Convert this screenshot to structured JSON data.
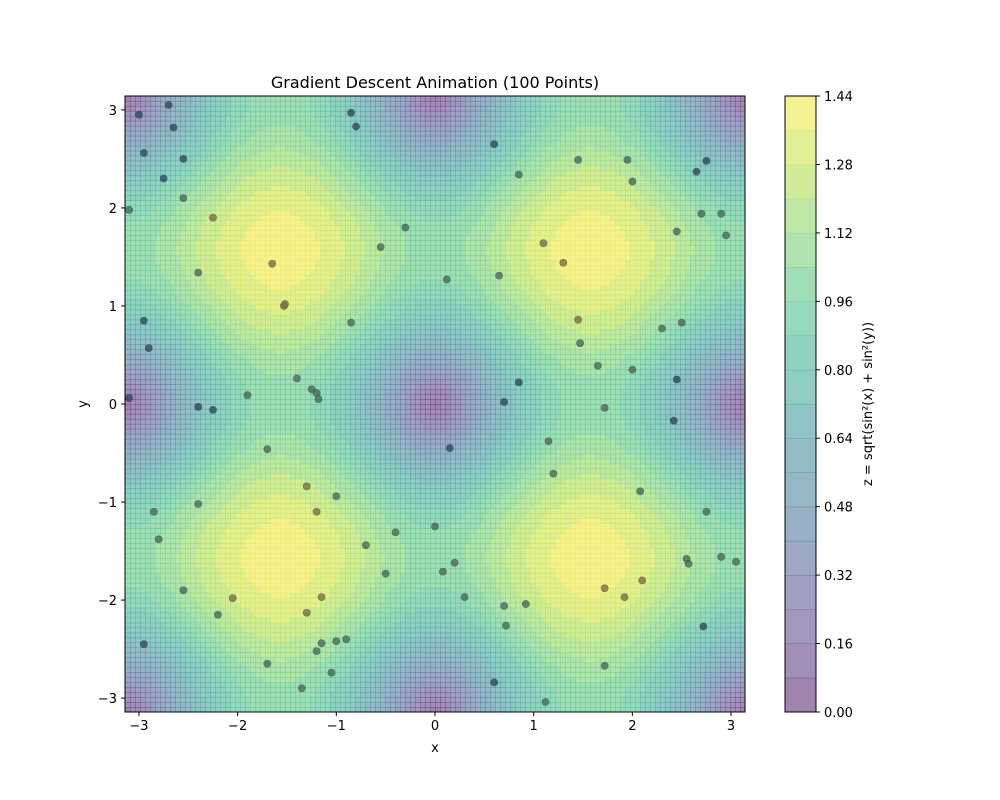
{
  "chart_data": {
    "type": "contour",
    "title": "Gradient Descent Animation (100 Points)",
    "xlabel": "x",
    "ylabel": "y",
    "colorbar_label": "z = sqrt(sin²(x) + sin²(y))",
    "function": "z = sqrt(sin^2(x) + sin^2(y))",
    "xlim": [
      -3.1416,
      3.1416
    ],
    "ylim": [
      -3.1416,
      3.1416
    ],
    "x_ticks": [
      -3,
      -2,
      -1,
      0,
      1,
      2,
      3
    ],
    "x_tick_labels": [
      "−3",
      "−2",
      "−1",
      "0",
      "1",
      "2",
      "3"
    ],
    "y_ticks": [
      -3,
      -2,
      -1,
      0,
      1,
      2,
      3
    ],
    "y_tick_labels": [
      "−3",
      "−2",
      "−1",
      "0",
      "1",
      "2",
      "3"
    ],
    "colorbar_ticks": [
      0.0,
      0.16,
      0.32,
      0.48,
      0.64,
      0.8,
      0.96,
      1.12,
      1.28,
      1.44
    ],
    "colorbar_tick_labels": [
      "0.00",
      "0.16",
      "0.32",
      "0.48",
      "0.64",
      "0.80",
      "0.96",
      "1.12",
      "1.28",
      "1.44"
    ],
    "levels": [
      0.0,
      0.08,
      0.16,
      0.24,
      0.32,
      0.4,
      0.48,
      0.56,
      0.64,
      0.72,
      0.8,
      0.88,
      0.96,
      1.04,
      1.12,
      1.2,
      1.28,
      1.36,
      1.44
    ],
    "colormap": "viridis",
    "fill_alpha": 0.5,
    "grid": false,
    "points": [
      [
        -3.0,
        2.95
      ],
      [
        -2.7,
        3.05
      ],
      [
        -2.95,
        2.56
      ],
      [
        -2.75,
        2.3
      ],
      [
        -2.65,
        2.82
      ],
      [
        -2.55,
        2.5
      ],
      [
        -3.1,
        1.98
      ],
      [
        -2.55,
        2.1
      ],
      [
        -2.25,
        1.9
      ],
      [
        -2.4,
        1.34
      ],
      [
        -1.65,
        1.43
      ],
      [
        -1.53,
        1.0
      ],
      [
        -1.52,
        1.02
      ],
      [
        -0.85,
        2.97
      ],
      [
        -0.8,
        2.83
      ],
      [
        -0.3,
        1.8
      ],
      [
        -0.55,
        1.6
      ],
      [
        -0.85,
        0.83
      ],
      [
        -2.95,
        0.85
      ],
      [
        -2.9,
        0.57
      ],
      [
        -3.1,
        0.06
      ],
      [
        -2.4,
        -0.03
      ],
      [
        -2.25,
        -0.06
      ],
      [
        -1.9,
        0.09
      ],
      [
        -1.4,
        0.26
      ],
      [
        -1.25,
        0.15
      ],
      [
        -1.2,
        0.11
      ],
      [
        -1.18,
        0.05
      ],
      [
        -1.7,
        -0.46
      ],
      [
        -1.3,
        -0.84
      ],
      [
        -1.2,
        -1.1
      ],
      [
        -1.0,
        -0.94
      ],
      [
        -2.4,
        -1.02
      ],
      [
        -2.85,
        -1.1
      ],
      [
        -2.8,
        -1.38
      ],
      [
        -2.05,
        -1.98
      ],
      [
        -2.2,
        -2.15
      ],
      [
        -2.55,
        -1.9
      ],
      [
        -2.95,
        -2.45
      ],
      [
        -1.7,
        -2.65
      ],
      [
        -1.3,
        -2.13
      ],
      [
        -1.15,
        -1.97
      ],
      [
        -0.7,
        -1.44
      ],
      [
        -0.4,
        -1.31
      ],
      [
        -0.5,
        -1.73
      ],
      [
        -1.2,
        -2.52
      ],
      [
        -1.15,
        -2.44
      ],
      [
        -1.0,
        -2.42
      ],
      [
        -0.9,
        -2.4
      ],
      [
        -1.05,
        -2.74
      ],
      [
        -1.35,
        -2.9
      ],
      [
        0.6,
        2.65
      ],
      [
        0.85,
        2.34
      ],
      [
        1.45,
        2.49
      ],
      [
        1.95,
        2.49
      ],
      [
        2.0,
        2.27
      ],
      [
        0.12,
        1.27
      ],
      [
        0.65,
        1.31
      ],
      [
        1.1,
        1.64
      ],
      [
        1.3,
        1.44
      ],
      [
        1.45,
        0.86
      ],
      [
        1.47,
        0.62
      ],
      [
        1.65,
        0.39
      ],
      [
        2.0,
        0.35
      ],
      [
        2.45,
        1.76
      ],
      [
        2.7,
        1.94
      ],
      [
        2.9,
        1.94
      ],
      [
        2.95,
        1.72
      ],
      [
        2.3,
        0.77
      ],
      [
        2.5,
        0.83
      ],
      [
        2.45,
        0.25
      ],
      [
        2.75,
        2.48
      ],
      [
        2.65,
        2.37
      ],
      [
        0.85,
        0.22
      ],
      [
        0.7,
        0.02
      ],
      [
        1.72,
        -0.04
      ],
      [
        2.42,
        -0.17
      ],
      [
        1.15,
        -0.38
      ],
      [
        0.15,
        -0.45
      ],
      [
        1.2,
        -0.71
      ],
      [
        2.08,
        -0.89
      ],
      [
        2.75,
        -1.1
      ],
      [
        0.0,
        -1.25
      ],
      [
        0.08,
        -1.71
      ],
      [
        0.2,
        -1.62
      ],
      [
        0.3,
        -1.97
      ],
      [
        0.7,
        -2.06
      ],
      [
        0.72,
        -2.26
      ],
      [
        0.92,
        -2.04
      ],
      [
        0.6,
        -2.84
      ],
      [
        1.12,
        -3.04
      ],
      [
        1.72,
        -1.88
      ],
      [
        1.92,
        -1.97
      ],
      [
        2.1,
        -1.8
      ],
      [
        2.55,
        -1.58
      ],
      [
        2.57,
        -1.63
      ],
      [
        2.9,
        -1.56
      ],
      [
        3.05,
        -1.61
      ],
      [
        2.72,
        -2.27
      ],
      [
        1.72,
        -2.67
      ]
    ]
  }
}
